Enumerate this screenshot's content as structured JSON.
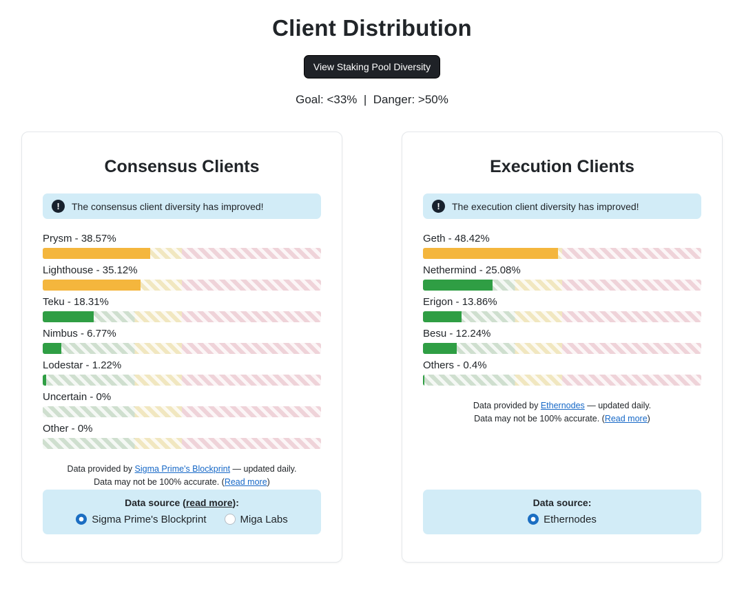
{
  "header": {
    "title": "Client Distribution",
    "button": "View Staking Pool Diversity",
    "thresholds": "Goal: <33%  |  Danger: >50%"
  },
  "icons": {
    "info": "!"
  },
  "colors": {
    "bar_warning": "#f4b63d",
    "bar_safe": "#2f9e44",
    "alert_bg": "#d2ecf7",
    "link_blue": "#1668c7",
    "radio_blue": "#1b6ec2",
    "button_bg": "#1f2227"
  },
  "chart_data": [
    {
      "type": "bar",
      "title": "Consensus Clients",
      "categories": [
        "Prysm",
        "Lighthouse",
        "Teku",
        "Nimbus",
        "Lodestar",
        "Uncertain",
        "Other"
      ],
      "values": [
        38.57,
        35.12,
        18.31,
        6.77,
        1.22,
        0,
        0
      ],
      "unit": "%",
      "xlim": [
        0,
        100
      ],
      "thresholds": {
        "goal": 33,
        "danger": 50
      }
    },
    {
      "type": "bar",
      "title": "Execution Clients",
      "categories": [
        "Geth",
        "Nethermind",
        "Erigon",
        "Besu",
        "Others"
      ],
      "values": [
        48.42,
        25.08,
        13.86,
        12.24,
        0.4
      ],
      "unit": "%",
      "xlim": [
        0,
        100
      ],
      "thresholds": {
        "goal": 33,
        "danger": 50
      }
    }
  ],
  "cards": [
    {
      "title": "Consensus Clients",
      "alert": "The consensus client diversity has improved!",
      "bars": [
        {
          "label": "Prysm - 38.57%",
          "percent": 38.57,
          "color": "#f4b63d"
        },
        {
          "label": "Lighthouse - 35.12%",
          "percent": 35.12,
          "color": "#f4b63d"
        },
        {
          "label": "Teku - 18.31%",
          "percent": 18.31,
          "color": "#2f9e44"
        },
        {
          "label": "Nimbus - 6.77%",
          "percent": 6.77,
          "color": "#2f9e44"
        },
        {
          "label": "Lodestar - 1.22%",
          "percent": 1.22,
          "color": "#2f9e44"
        },
        {
          "label": "Uncertain - 0%",
          "percent": 0,
          "color": "#2f9e44"
        },
        {
          "label": "Other - 0%",
          "percent": 0,
          "color": "#2f9e44"
        }
      ],
      "attribution": {
        "line1_prefix": "Data provided by ",
        "line1_link": "Sigma Prime's Blockprint",
        "line1_suffix": " — updated daily.",
        "line2_prefix": "Data may not be 100% accurate. (",
        "line2_link": "Read more",
        "line2_suffix": ")"
      },
      "source_box": {
        "label_prefix": "Data source (",
        "label_link": "read more",
        "label_suffix": "):",
        "options": [
          {
            "label": "Sigma Prime's Blockprint",
            "checked": true
          },
          {
            "label": "Miga Labs",
            "checked": false
          }
        ]
      }
    },
    {
      "title": "Execution Clients",
      "alert": "The execution client diversity has improved!",
      "bars": [
        {
          "label": "Geth - 48.42%",
          "percent": 48.42,
          "color": "#f4b63d"
        },
        {
          "label": "Nethermind - 25.08%",
          "percent": 25.08,
          "color": "#2f9e44"
        },
        {
          "label": "Erigon - 13.86%",
          "percent": 13.86,
          "color": "#2f9e44"
        },
        {
          "label": "Besu - 12.24%",
          "percent": 12.24,
          "color": "#2f9e44"
        },
        {
          "label": "Others - 0.4%",
          "percent": 0.4,
          "color": "#2f9e44"
        }
      ],
      "attribution": {
        "line1_prefix": "Data provided by ",
        "line1_link": "Ethernodes",
        "line1_suffix": " — updated daily.",
        "line2_prefix": "Data may not be 100% accurate. (",
        "line2_link": "Read more",
        "line2_suffix": ")"
      },
      "source_box": {
        "label_prefix": "Data source",
        "label_link": "",
        "label_suffix": ":",
        "options": [
          {
            "label": "Ethernodes",
            "checked": true
          }
        ]
      }
    }
  ]
}
